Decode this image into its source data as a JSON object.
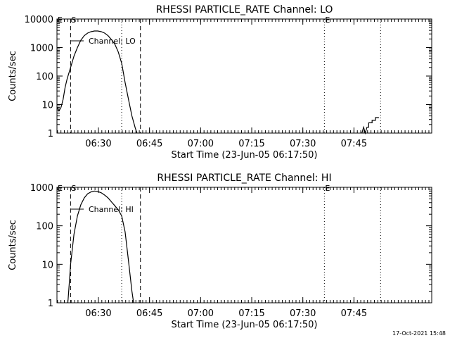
{
  "colors": {
    "background": "#ffffff",
    "foreground": "#000000"
  },
  "timestamp": "17-Oct-2021 15:48",
  "chart_data": [
    {
      "type": "line",
      "title": "RHESSI PARTICLE_RATE Channel: LO",
      "xlabel": "Start Time (23-Jun-05 06:17:50)",
      "ylabel": "Counts/sec",
      "yscale": "log",
      "xlim": [
        0,
        110
      ],
      "ylim": [
        1,
        10000
      ],
      "x_ticks": [
        12.17,
        27.17,
        42.17,
        57.17,
        72.17,
        87.17
      ],
      "x_tick_labels": [
        "06:30",
        "06:45",
        "07:00",
        "07:15",
        "07:30",
        "07:45"
      ],
      "y_ticks": [
        1,
        10,
        100,
        1000,
        10000
      ],
      "y_tick_labels": [
        "1",
        "10",
        "100",
        "1000",
        "10000"
      ],
      "legend": "Channel: LO",
      "markers": [
        {
          "x": 4.0,
          "style": "dashed",
          "label": "S"
        },
        {
          "x": 19.0,
          "style": "dotted",
          "label": ""
        },
        {
          "x": 24.5,
          "style": "dashed",
          "label": ""
        },
        {
          "x": 78.5,
          "style": "dotted",
          "label": "E"
        },
        {
          "x": 95.0,
          "style": "dotted",
          "label": ""
        }
      ],
      "edge_labels": [
        "E"
      ],
      "series": [
        {
          "name": "LO",
          "x": [
            0,
            0.6,
            1.2,
            1.8,
            2.4,
            3.0,
            4.0,
            5.0,
            6.0,
            7.0,
            8.0,
            9.0,
            10.0,
            11.0,
            12.0,
            13.0,
            14.0,
            15.0,
            16.0,
            17.0,
            18.0,
            19.0,
            20.0,
            21.0,
            22.0,
            23.0,
            23.5
          ],
          "y": [
            8,
            6,
            8,
            15,
            40,
            80,
            200,
            500,
            1000,
            1800,
            2600,
            3200,
            3600,
            3800,
            3800,
            3600,
            3200,
            2600,
            1900,
            1300,
            700,
            280,
            60,
            15,
            4,
            1.5,
            1
          ]
        },
        {
          "name": "LO-late",
          "x": [
            89.5,
            90.0,
            90.5,
            91.0,
            91.5,
            91.5,
            92.5,
            92.5,
            93.5,
            93.5,
            94.5
          ],
          "y": [
            1,
            1.6,
            1,
            1.6,
            1.6,
            2.3,
            2.3,
            2.8,
            2.8,
            3.5,
            3.5
          ]
        }
      ]
    },
    {
      "type": "line",
      "title": "RHESSI PARTICLE_RATE Channel: HI",
      "xlabel": "Start Time (23-Jun-05 06:17:50)",
      "ylabel": "Counts/sec",
      "yscale": "log",
      "xlim": [
        0,
        110
      ],
      "ylim": [
        1,
        1000
      ],
      "x_ticks": [
        12.17,
        27.17,
        42.17,
        57.17,
        72.17,
        87.17
      ],
      "x_tick_labels": [
        "06:30",
        "06:45",
        "07:00",
        "07:15",
        "07:30",
        "07:45"
      ],
      "y_ticks": [
        1,
        10,
        100,
        1000
      ],
      "y_tick_labels": [
        "1",
        "10",
        "100",
        "1000"
      ],
      "legend": "Channel: HI",
      "markers": [
        {
          "x": 4.0,
          "style": "dashed",
          "label": "S"
        },
        {
          "x": 19.0,
          "style": "dotted",
          "label": ""
        },
        {
          "x": 24.5,
          "style": "dashed",
          "label": ""
        },
        {
          "x": 78.5,
          "style": "dotted",
          "label": "E"
        },
        {
          "x": 95.0,
          "style": "dotted",
          "label": ""
        }
      ],
      "edge_labels": [
        "E"
      ],
      "series": [
        {
          "name": "HI",
          "x": [
            3.2,
            3.6,
            4.0,
            5.0,
            6.0,
            7.0,
            8.0,
            9.0,
            10.0,
            11.0,
            12.0,
            13.0,
            14.0,
            15.0,
            16.0,
            17.0,
            18.0,
            19.0,
            20.0,
            21.0,
            22.0,
            22.5
          ],
          "y": [
            1,
            3,
            10,
            60,
            180,
            350,
            530,
            680,
            760,
            800,
            780,
            720,
            630,
            530,
            420,
            330,
            260,
            180,
            70,
            12,
            2,
            1
          ]
        }
      ]
    }
  ]
}
